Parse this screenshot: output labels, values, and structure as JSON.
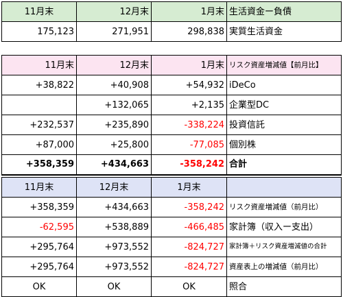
{
  "table1": {
    "header": [
      "11月末",
      "12月末",
      "1月末",
      "生活資金ー負債"
    ],
    "rows": [
      [
        "175,123",
        "271,951",
        "298,838",
        "実質生活資金"
      ]
    ]
  },
  "table2": {
    "header": [
      "11月末",
      "12月末",
      "1月末",
      "リスク資産増減値【前月比】"
    ],
    "rows": [
      [
        "+38,822",
        "+40,908",
        "+54,932",
        "iDeCo"
      ],
      [
        "",
        "+132,065",
        "+2,135",
        "企業型DC"
      ],
      [
        "+232,537",
        "+235,890",
        "-338,224",
        "投資信託"
      ],
      [
        "+87,000",
        "+25,800",
        "-77,085",
        "個別株"
      ],
      [
        "+358,359",
        "+434,663",
        "-358,242",
        "合計"
      ]
    ]
  },
  "table3": {
    "header": [
      "11月末",
      "12月末",
      "1月末",
      ""
    ],
    "rows": [
      [
        "+358,359",
        "+434,663",
        "-358,242",
        "リスク資産増減値（前月比）"
      ],
      [
        "-62,595",
        "+538,889",
        "-466,485",
        "家計簿（収入ー支出）"
      ],
      [
        "+295,764",
        "+973,552",
        "-824,727",
        "家計簿＋リスク資産増減値の合計"
      ],
      [
        "+295,764",
        "+973,552",
        "-824,727",
        "資産表上の増減値（前月比）"
      ],
      [
        "OK",
        "OK",
        "OK",
        "照合"
      ]
    ]
  },
  "colors": {
    "negative": "#ff0000",
    "header_green": "#d6ecd2",
    "header_pink": "#fce4f1",
    "header_blue": "#dee3f6"
  }
}
